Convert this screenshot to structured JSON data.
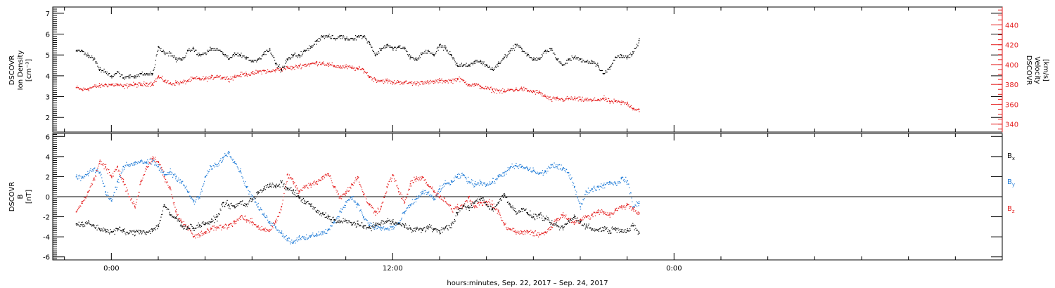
{
  "chart_data": [
    {
      "type": "scatter",
      "panel": "density-velocity",
      "ylabel_left": [
        "DSCOVR",
        "Ion Density",
        "[cm⁻³]"
      ],
      "ylabel_right": [
        "DSCOVR",
        "Velocity",
        "[km/s]"
      ],
      "ylim_left": [
        1.3,
        7.3
      ],
      "yticks_left": [
        2,
        3,
        4,
        5,
        6,
        7
      ],
      "ylim_right": [
        332,
        458
      ],
      "yticks_right": [
        340,
        360,
        380,
        400,
        420,
        440
      ],
      "series": [
        {
          "axis": "left",
          "color": "#000000",
          "x": [
            -3.0,
            -2.5,
            -2.0,
            -1.5,
            -1.0,
            -0.5,
            0.0,
            0.5,
            1.0,
            1.5,
            2.0,
            2.5,
            3.0,
            3.5,
            4.0,
            4.5,
            5.0,
            5.5,
            6.0,
            6.5,
            7.0,
            7.5,
            8.0,
            8.5,
            9.0,
            9.5,
            10.0,
            10.5,
            11.0,
            11.5,
            12.0,
            12.5,
            13.0,
            13.5,
            14.0,
            14.5,
            15.0,
            15.5,
            16.0,
            16.5,
            17.0,
            17.5,
            18.0,
            18.5,
            19.0,
            19.5,
            20.0,
            20.5,
            21.0,
            21.5,
            22.0,
            22.5,
            23.0,
            23.5,
            24.0,
            24.5,
            25.0,
            25.5,
            26.0,
            26.5,
            27.0,
            27.5,
            28.0,
            28.5,
            29.0,
            29.5,
            30.0,
            30.5,
            31.0,
            31.5,
            32.0,
            32.5,
            33.0,
            33.5,
            34.0,
            34.5,
            35.0,
            35.5,
            36.0,
            36.5,
            37.0,
            37.5,
            38.0,
            38.5,
            39.0,
            39.5,
            40.0,
            40.5,
            41.0,
            41.5,
            42.0,
            42.5,
            43.0,
            43.5,
            44.0,
            44.5,
            45.0
          ],
          "y": [
            5.2,
            5.2,
            5.0,
            4.8,
            4.3,
            4.2,
            4.0,
            4.2,
            3.9,
            4.0,
            4.0,
            4.1,
            4.1,
            4.1,
            5.4,
            5.1,
            5.1,
            4.8,
            4.8,
            5.2,
            5.3,
            5.0,
            5.1,
            5.3,
            5.3,
            5.1,
            4.8,
            5.1,
            5.0,
            4.9,
            4.7,
            4.8,
            5.1,
            5.3,
            4.6,
            4.3,
            4.8,
            5.0,
            5.0,
            5.2,
            5.4,
            5.7,
            5.9,
            5.9,
            5.8,
            5.9,
            5.8,
            5.8,
            5.9,
            5.9,
            5.6,
            5.0,
            5.3,
            5.5,
            5.3,
            5.4,
            5.3,
            4.9,
            4.8,
            5.1,
            5.2,
            5.0,
            5.5,
            5.3,
            5.0,
            4.5,
            4.5,
            4.5,
            4.7,
            4.7,
            4.5,
            4.3,
            4.6,
            4.9,
            5.2,
            5.5,
            5.3,
            5.0,
            4.8,
            4.8,
            5.2,
            5.3,
            4.8,
            4.5,
            4.8,
            4.9,
            4.8,
            4.7,
            4.7,
            4.5,
            4.1,
            4.4,
            4.9,
            5.0,
            4.9,
            5.1,
            5.7
          ]
        },
        {
          "axis": "right",
          "color": "#e41a1a",
          "x": [
            -3.0,
            -2.5,
            -2.0,
            -1.5,
            -1.0,
            -0.5,
            0.0,
            0.5,
            1.0,
            1.5,
            2.0,
            2.5,
            3.0,
            3.5,
            4.0,
            4.5,
            5.0,
            5.5,
            6.0,
            6.5,
            7.0,
            7.5,
            8.0,
            8.5,
            9.0,
            9.5,
            10.0,
            10.5,
            11.0,
            11.5,
            12.0,
            12.5,
            13.0,
            13.5,
            14.0,
            14.5,
            15.0,
            15.5,
            16.0,
            16.5,
            17.0,
            17.5,
            18.0,
            18.5,
            19.0,
            19.5,
            20.0,
            20.5,
            21.0,
            21.5,
            22.0,
            22.5,
            23.0,
            23.5,
            24.0,
            24.5,
            25.0,
            25.5,
            26.0,
            26.5,
            27.0,
            27.5,
            28.0,
            28.5,
            29.0,
            29.5,
            30.0,
            30.5,
            31.0,
            31.5,
            32.0,
            32.5,
            33.0,
            33.5,
            34.0,
            34.5,
            35.0,
            35.5,
            36.0,
            36.5,
            37.0,
            37.5,
            38.0,
            38.5,
            39.0,
            39.5,
            40.0,
            40.5,
            41.0,
            41.5,
            42.0,
            42.5,
            43.0,
            43.5,
            44.0,
            44.5,
            45.0
          ],
          "y": [
            377,
            375,
            376,
            378,
            379,
            380,
            380,
            380,
            378,
            380,
            380,
            380,
            381,
            381,
            388,
            384,
            381,
            382,
            382,
            384,
            386,
            386,
            386,
            387,
            389,
            387,
            386,
            388,
            390,
            391,
            391,
            393,
            394,
            393,
            395,
            396,
            397,
            397,
            399,
            400,
            401,
            402,
            402,
            400,
            399,
            398,
            398,
            397,
            396,
            395,
            388,
            385,
            384,
            384,
            382,
            383,
            382,
            382,
            381,
            383,
            382,
            383,
            384,
            384,
            384,
            386,
            384,
            380,
            380,
            378,
            376,
            375,
            374,
            373,
            375,
            375,
            376,
            374,
            373,
            372,
            368,
            365,
            366,
            365,
            366,
            366,
            365,
            365,
            364,
            365,
            366,
            363,
            363,
            362,
            361,
            356,
            355
          ]
        }
      ]
    },
    {
      "type": "scatter",
      "panel": "magnetic-field",
      "ylabel": [
        "DSCOVR",
        "B",
        "[nT]"
      ],
      "ylim": [
        -6.3,
        6.3
      ],
      "yticks": [
        -6,
        -4,
        -2,
        0,
        2,
        4,
        6
      ],
      "zero_line": true,
      "series": [
        {
          "name": "B",
          "sub": "x",
          "color": "#000000",
          "x": [
            -3.0,
            -2.5,
            -2.0,
            -1.5,
            -1.0,
            -0.5,
            0.0,
            0.5,
            1.0,
            1.5,
            2.0,
            2.5,
            3.0,
            3.5,
            4.0,
            4.5,
            5.0,
            5.5,
            6.0,
            6.5,
            7.0,
            7.5,
            8.0,
            8.5,
            9.0,
            9.5,
            10.0,
            10.5,
            11.0,
            11.5,
            12.0,
            12.5,
            13.0,
            13.5,
            14.0,
            14.5,
            15.0,
            15.5,
            16.0,
            16.5,
            17.0,
            17.5,
            18.0,
            18.5,
            19.0,
            19.5,
            20.0,
            20.5,
            21.0,
            21.5,
            22.0,
            22.5,
            23.0,
            23.5,
            24.0,
            24.5,
            25.0,
            25.5,
            26.0,
            26.5,
            27.0,
            27.5,
            28.0,
            28.5,
            29.0,
            29.5,
            30.0,
            30.5,
            31.0,
            31.5,
            32.0,
            32.5,
            33.0,
            33.5,
            34.0,
            34.5,
            35.0,
            35.5,
            36.0,
            36.5,
            37.0,
            37.5,
            38.0,
            38.5,
            39.0,
            39.5,
            40.0,
            40.5,
            41.0,
            41.5,
            42.0,
            42.5,
            43.0,
            43.5,
            44.0,
            44.5,
            45.0
          ],
          "y": [
            -2.7,
            -2.8,
            -2.6,
            -2.9,
            -3.2,
            -3.3,
            -3.5,
            -3.2,
            -3.4,
            -3.6,
            -3.5,
            -3.4,
            -3.5,
            -3.3,
            -2.8,
            -0.8,
            -1.8,
            -2.1,
            -2.9,
            -3.0,
            -3.1,
            -2.8,
            -2.6,
            -2.5,
            -2.0,
            -0.6,
            -0.8,
            -1.0,
            -0.5,
            -0.8,
            -0.2,
            0.5,
            0.8,
            1.2,
            1.0,
            1.4,
            0.8,
            0.6,
            -0.1,
            -0.5,
            -0.8,
            -1.5,
            -1.7,
            -2.0,
            -2.3,
            -2.5,
            -2.4,
            -2.6,
            -2.7,
            -3.0,
            -3.0,
            -2.8,
            -2.6,
            -2.4,
            -2.5,
            -2.7,
            -2.9,
            -3.1,
            -3.2,
            -3.3,
            -3.0,
            -3.2,
            -3.4,
            -3.1,
            -2.8,
            -1.6,
            -0.9,
            -1.1,
            -0.5,
            0.0,
            -0.8,
            -1.2,
            -0.6,
            0.3,
            -0.8,
            -1.5,
            -1.2,
            -1.6,
            -2.0,
            -1.8,
            -2.2,
            -2.6,
            -2.9,
            -3.1,
            -2.4,
            -2.0,
            -2.5,
            -2.9,
            -3.2,
            -3.3,
            -3.1,
            -3.4,
            -3.1,
            -3.3,
            -3.4,
            -2.9,
            -3.6
          ]
        },
        {
          "name": "B",
          "sub": "y",
          "color": "#1a78d6",
          "x": [
            -3.0,
            -2.5,
            -2.0,
            -1.5,
            -1.0,
            -0.5,
            0.0,
            0.5,
            1.0,
            1.5,
            2.0,
            2.5,
            3.0,
            3.5,
            4.0,
            4.5,
            5.0,
            5.5,
            6.0,
            6.5,
            7.0,
            7.5,
            8.0,
            8.5,
            9.0,
            9.5,
            10.0,
            10.5,
            11.0,
            11.5,
            12.0,
            12.5,
            13.0,
            13.5,
            14.0,
            14.5,
            15.0,
            15.5,
            16.0,
            16.5,
            17.0,
            17.5,
            18.0,
            18.5,
            19.0,
            19.5,
            20.0,
            20.5,
            21.0,
            21.5,
            22.0,
            22.5,
            23.0,
            23.5,
            24.0,
            24.5,
            25.0,
            25.5,
            26.0,
            26.5,
            27.0,
            27.5,
            28.0,
            28.5,
            29.0,
            29.5,
            30.0,
            30.5,
            31.0,
            31.5,
            32.0,
            32.5,
            33.0,
            33.5,
            34.0,
            34.5,
            35.0,
            35.5,
            36.0,
            36.5,
            37.0,
            37.5,
            38.0,
            38.5,
            39.0,
            39.5,
            40.0,
            40.5,
            41.0,
            41.5,
            42.0,
            42.5,
            43.0,
            43.5,
            44.0,
            44.5,
            45.0
          ],
          "y": [
            2.0,
            1.9,
            2.3,
            2.8,
            2.4,
            0.5,
            -0.4,
            1.5,
            3.0,
            3.2,
            3.4,
            3.6,
            3.4,
            3.5,
            3.0,
            2.2,
            2.5,
            2.0,
            1.5,
            0.5,
            -0.5,
            0.0,
            2.0,
            3.0,
            3.2,
            3.9,
            4.5,
            3.5,
            2.5,
            1.0,
            0.0,
            -1.0,
            -1.8,
            -2.5,
            -3.0,
            -3.6,
            -4.2,
            -4.5,
            -4.0,
            -4.2,
            -3.9,
            -3.7,
            -3.6,
            -3.3,
            -2.5,
            -1.5,
            -0.5,
            0.0,
            -0.8,
            -2.0,
            -2.8,
            -3.0,
            -3.1,
            -3.2,
            -3.0,
            -2.6,
            -1.5,
            -0.8,
            -0.2,
            0.5,
            0.4,
            -0.3,
            0.8,
            1.3,
            1.5,
            2.0,
            2.2,
            1.5,
            1.3,
            1.5,
            1.2,
            1.5,
            2.0,
            2.4,
            2.9,
            3.1,
            3.0,
            2.8,
            2.6,
            2.3,
            2.5,
            3.2,
            3.0,
            2.8,
            2.4,
            1.0,
            -1.0,
            0.5,
            0.8,
            1.0,
            1.2,
            1.5,
            1.3,
            1.8,
            1.6,
            -1.0,
            -0.5
          ]
        },
        {
          "name": "B",
          "sub": "z",
          "color": "#e41a1a",
          "x": [
            -3.0,
            -2.5,
            -2.0,
            -1.5,
            -1.0,
            -0.5,
            0.0,
            0.5,
            1.0,
            1.5,
            2.0,
            2.5,
            3.0,
            3.5,
            4.0,
            4.5,
            5.0,
            5.5,
            6.0,
            6.5,
            7.0,
            7.5,
            8.0,
            8.5,
            9.0,
            9.5,
            10.0,
            10.5,
            11.0,
            11.5,
            12.0,
            12.5,
            13.0,
            13.5,
            14.0,
            14.5,
            15.0,
            15.5,
            16.0,
            16.5,
            17.0,
            17.5,
            18.0,
            18.5,
            19.0,
            19.5,
            20.0,
            20.5,
            21.0,
            21.5,
            22.0,
            22.5,
            23.0,
            23.5,
            24.0,
            24.5,
            25.0,
            25.5,
            26.0,
            26.5,
            27.0,
            27.5,
            28.0,
            28.5,
            29.0,
            29.5,
            30.0,
            30.5,
            31.0,
            31.5,
            32.0,
            32.5,
            33.0,
            33.5,
            34.0,
            34.5,
            35.0,
            35.5,
            36.0,
            36.5,
            37.0,
            37.5,
            38.0,
            38.5,
            39.0,
            39.5,
            40.0,
            40.5,
            41.0,
            41.5,
            42.0,
            42.5,
            43.0,
            43.5,
            44.0,
            44.5,
            45.0
          ],
          "y": [
            -1.5,
            -0.5,
            0.5,
            1.8,
            3.5,
            3.0,
            2.0,
            3.0,
            1.5,
            0.0,
            -1.0,
            1.5,
            3.0,
            3.8,
            3.5,
            2.0,
            0.8,
            -1.5,
            -2.5,
            -3.0,
            -4.0,
            -3.8,
            -3.5,
            -3.2,
            -3.0,
            -3.0,
            -2.8,
            -2.5,
            -2.0,
            -2.3,
            -2.5,
            -3.0,
            -3.2,
            -3.3,
            -2.5,
            -1.0,
            2.2,
            1.5,
            0.5,
            1.0,
            1.2,
            1.5,
            2.0,
            2.3,
            1.0,
            0.0,
            0.5,
            1.2,
            2.0,
            0.2,
            -0.8,
            -1.5,
            -1.0,
            1.0,
            2.2,
            0.5,
            -0.5,
            1.3,
            1.8,
            2.0,
            1.2,
            0.5,
            0.0,
            -0.5,
            -1.2,
            -1.0,
            -0.8,
            0.0,
            -1.0,
            -0.6,
            -0.5,
            -0.8,
            -1.5,
            -2.8,
            -3.2,
            -3.5,
            -3.6,
            -3.4,
            -3.6,
            -3.8,
            -3.5,
            -3.0,
            -2.2,
            -1.8,
            -2.2,
            -2.5,
            -2.3,
            -2.0,
            -1.8,
            -1.4,
            -1.5,
            -1.8,
            -1.3,
            -1.0,
            -0.8,
            -1.2,
            -1.6
          ]
        }
      ]
    }
  ],
  "xaxis": {
    "xlim": [
      -5.0,
      76.0
    ],
    "major_ticks": [
      0,
      24,
      48
    ],
    "major_labels": [
      "0:00",
      "12:00",
      "0:00"
    ],
    "minor_step": 4,
    "title": "hours:minutes, Sep. 22, 2017 – Sep. 24, 2017"
  }
}
